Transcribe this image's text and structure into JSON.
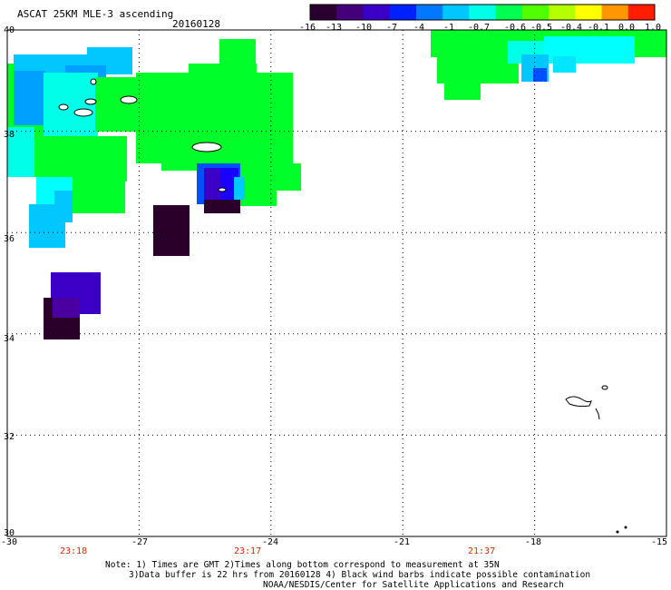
{
  "header": {
    "title": "ASCAT 25KM MLE-3 ascending",
    "date": "20160128"
  },
  "colorbar": {
    "labels": [
      "-16",
      "-13",
      "-10",
      "-7",
      "-4",
      "-1",
      "-0.7",
      "-0.6",
      "-0.5",
      "-0.4",
      "-0.1",
      "0.0",
      "1.0"
    ],
    "colors": [
      "#2a0030",
      "#44007a",
      "#3a00c8",
      "#0020ff",
      "#0078ff",
      "#00c8ff",
      "#00ffe6",
      "#00ff50",
      "#50ff00",
      "#b4ff00",
      "#ffff00",
      "#ff9600",
      "#ff1e00"
    ]
  },
  "axes": {
    "lat_labels": [
      "40",
      "38",
      "36",
      "34",
      "32",
      "30"
    ],
    "lon_labels": [
      "-30",
      "-27",
      "-24",
      "-21",
      "-18",
      "-15"
    ],
    "lat_range": [
      30,
      40
    ],
    "lon_range": [
      -30,
      -15
    ]
  },
  "times": [
    "23:18",
    "23:17",
    "21:37"
  ],
  "notes": {
    "line1": "Note: 1) Times are GMT 2)Times along bottom correspond to measurement at 35N",
    "line2": "3)Data buffer is 22 hrs from 20160128 4) Black wind barbs indicate possible contamination",
    "line3": "NOAA/NESDIS/Center for Satellite Applications and Research"
  },
  "palette": {
    "green": "#00ff2a",
    "cyan": "#00ffff",
    "lightblue": "#00c8ff",
    "skyblue": "#00a0ff",
    "blue": "#0050ff",
    "deepblue": "#1a00ff",
    "purple": "#3a00c8",
    "violet": "#4a00a0",
    "darkpurple": "#2a002a"
  }
}
